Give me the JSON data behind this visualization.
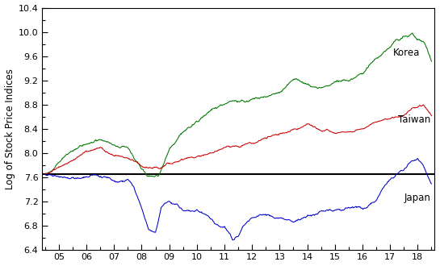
{
  "title": "",
  "ylabel": "Log of Stock Price Indices",
  "xlabel": "",
  "ylim": [
    6.4,
    10.4
  ],
  "yticks": [
    6.4,
    6.8,
    7.2,
    7.6,
    8.0,
    8.4,
    8.8,
    9.2,
    9.6,
    10.0,
    10.4
  ],
  "hline_y": 7.65,
  "korea_color": "#007700",
  "taiwan_color": "#cc0000",
  "japan_color": "#0000cc",
  "hline_color": "#000000",
  "label_korea": "Korea",
  "label_taiwan": "Taiwan",
  "label_japan": "Japan",
  "xtick_labels": [
    "05",
    "06",
    "07",
    "08",
    "09",
    "10",
    "11",
    "12",
    "13",
    "14",
    "15",
    "16",
    "17",
    "18"
  ],
  "n_points": 840,
  "background_color": "#ffffff"
}
